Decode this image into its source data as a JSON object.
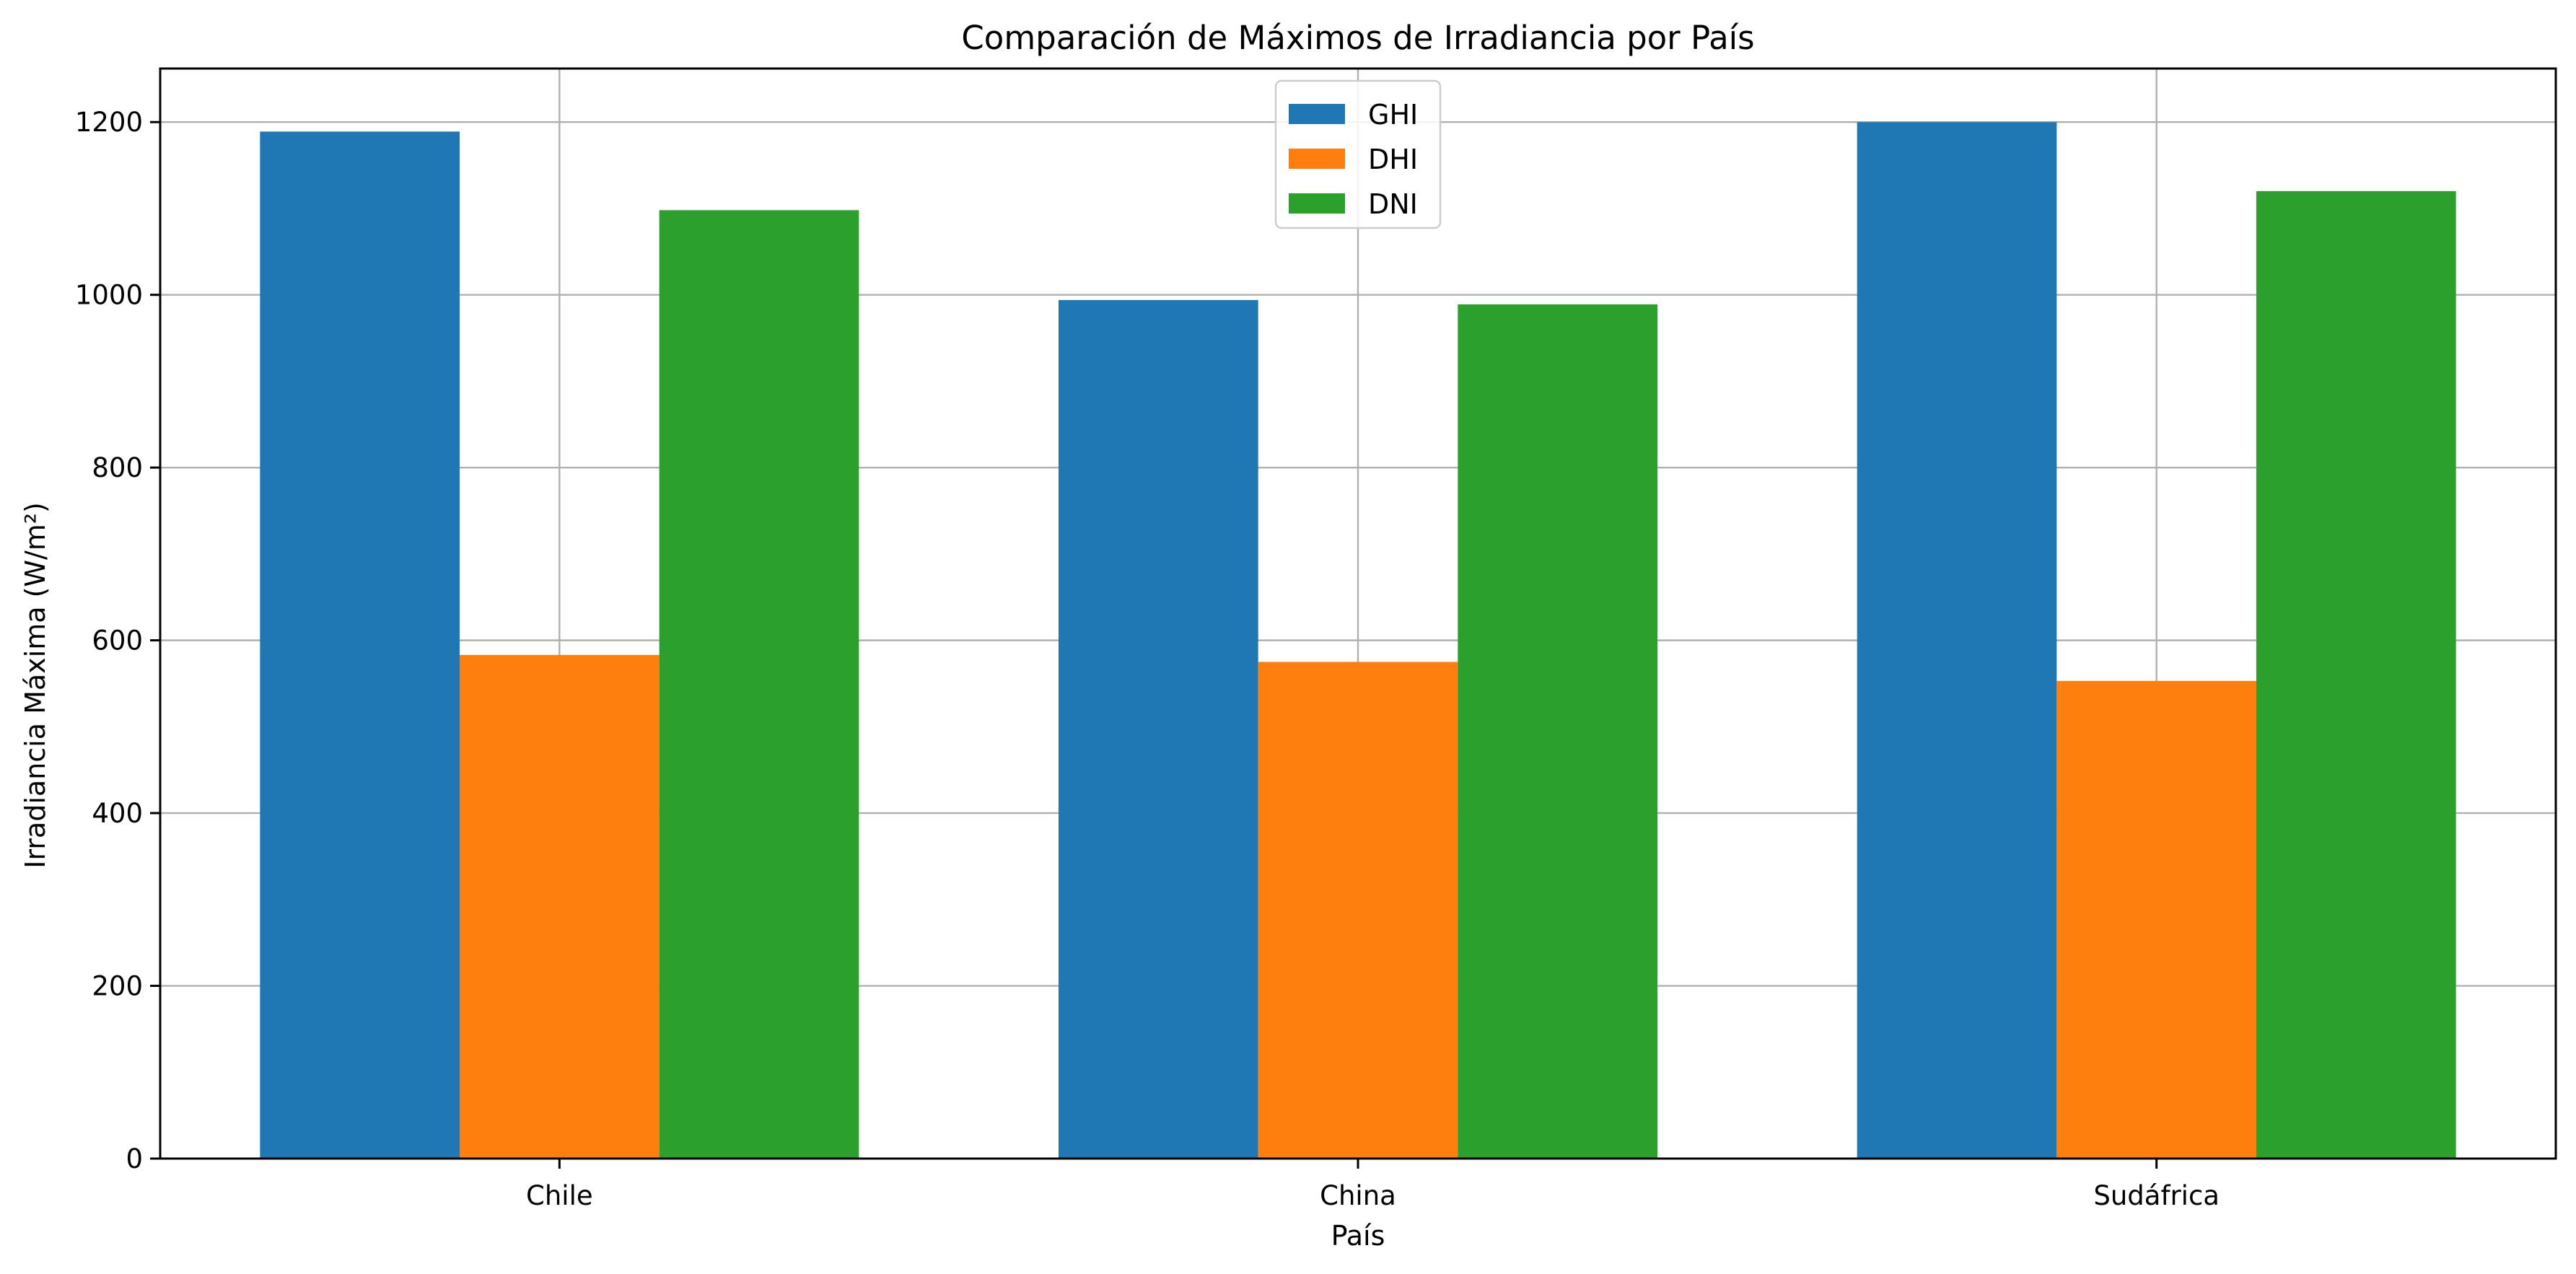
{
  "chart_data": {
    "type": "bar",
    "title": "Comparación de Máximos de Irradiancia por País",
    "xlabel": "País",
    "ylabel": "Irradiancia Máxima (W/m²)",
    "categories": [
      "Chile",
      "China",
      "Sudáfrica"
    ],
    "series": [
      {
        "name": "GHI",
        "values": [
          1189,
          994,
          1200
        ],
        "color": "#1f77b4"
      },
      {
        "name": "DHI",
        "values": [
          583,
          575,
          553
        ],
        "color": "#ff7f0e"
      },
      {
        "name": "DNI",
        "values": [
          1098,
          989,
          1120
        ],
        "color": "#2ca02c"
      }
    ],
    "ylim": [
      0,
      1262
    ],
    "yticks": [
      0,
      200,
      400,
      600,
      800,
      1000,
      1200
    ],
    "grid": true,
    "legend": "upper-center"
  }
}
